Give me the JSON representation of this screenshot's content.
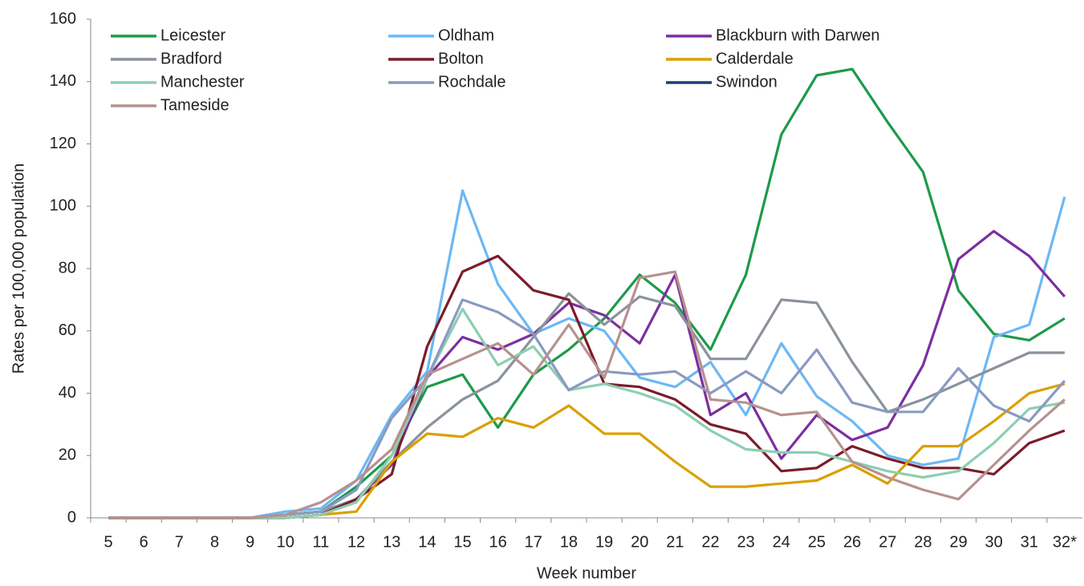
{
  "chart_data": {
    "type": "line",
    "y_label": "Rates per 100,000 population",
    "x_label": "Week number",
    "categories": [
      "5",
      "6",
      "7",
      "8",
      "9",
      "10",
      "11",
      "12",
      "13",
      "14",
      "15",
      "16",
      "17",
      "18",
      "19",
      "20",
      "21",
      "22",
      "23",
      "24",
      "25",
      "26",
      "27",
      "28",
      "29",
      "30",
      "31",
      "32*"
    ],
    "ylim": [
      0,
      160
    ],
    "yticks": [
      0,
      20,
      40,
      60,
      80,
      100,
      120,
      140,
      160
    ],
    "grid": false,
    "legend": "top",
    "series": [
      {
        "name": "Leicester",
        "color": "#1e9a4a",
        "values": [
          0,
          0,
          0,
          0,
          0,
          1,
          2,
          10,
          20,
          42,
          46,
          29,
          46,
          54,
          64,
          78,
          69,
          54,
          78,
          123,
          142,
          144,
          127,
          111,
          73,
          59,
          57,
          64
        ]
      },
      {
        "name": "Oldham",
        "color": "#6cb8f5",
        "values": [
          0,
          0,
          0,
          0,
          0,
          2,
          3,
          12,
          33,
          47,
          105,
          75,
          59,
          64,
          60,
          45,
          42,
          50,
          33,
          56,
          39,
          31,
          20,
          17,
          19,
          58,
          62,
          103
        ]
      },
      {
        "name": "Blackburn with Darwen",
        "color": "#7b2fa0",
        "values": [
          0,
          0,
          0,
          0,
          0,
          0,
          1,
          6,
          17,
          45,
          58,
          54,
          59,
          69,
          65,
          56,
          78,
          33,
          40,
          19,
          33,
          25,
          29,
          49,
          83,
          92,
          84,
          71
        ]
      },
      {
        "name": "Bradford",
        "color": "#8b929c",
        "values": [
          0,
          0,
          0,
          0,
          0,
          1,
          2,
          6,
          18,
          29,
          38,
          44,
          58,
          72,
          62,
          71,
          68,
          51,
          51,
          70,
          69,
          50,
          34,
          38,
          43,
          48,
          53,
          53
        ]
      },
      {
        "name": "Bolton",
        "color": "#7b1c2a",
        "values": [
          0,
          0,
          0,
          0,
          0,
          0,
          1,
          6,
          14,
          55,
          79,
          84,
          73,
          70,
          43,
          42,
          38,
          30,
          27,
          15,
          16,
          23,
          19,
          16,
          16,
          14,
          24,
          28
        ]
      },
      {
        "name": "Calderdale",
        "color": "#d9a000",
        "values": [
          0,
          0,
          0,
          0,
          0,
          0,
          1,
          2,
          18,
          27,
          26,
          32,
          29,
          36,
          27,
          27,
          18,
          10,
          10,
          11,
          12,
          17,
          11,
          23,
          23,
          31,
          40,
          43
        ]
      },
      {
        "name": "Manchester",
        "color": "#8ccfb0",
        "values": [
          0,
          0,
          0,
          0,
          0,
          0,
          1,
          5,
          20,
          45,
          67,
          49,
          55,
          41,
          43,
          40,
          36,
          28,
          22,
          21,
          21,
          18,
          15,
          13,
          15,
          24,
          35,
          37
        ]
      },
      {
        "name": "Rochdale",
        "color": "#8a9ac0",
        "values": [
          0,
          0,
          0,
          0,
          0,
          1,
          2,
          9,
          32,
          45,
          70,
          66,
          59,
          41,
          47,
          46,
          47,
          40,
          47,
          40,
          54,
          37,
          34,
          34,
          48,
          36,
          31,
          44
        ]
      },
      {
        "name": "Swindon",
        "color": "#1f3d7a",
        "values": [
          null,
          null,
          null,
          null,
          null,
          null,
          null,
          null,
          null,
          null,
          null,
          null,
          null,
          null,
          null,
          null,
          null,
          null,
          null,
          null,
          null,
          null,
          null,
          null,
          null,
          null,
          null,
          null
        ]
      },
      {
        "name": "Tameside",
        "color": "#b89090",
        "values": [
          0,
          0,
          0,
          0,
          0,
          1,
          5,
          12,
          22,
          46,
          51,
          56,
          46,
          62,
          45,
          77,
          79,
          38,
          37,
          33,
          34,
          18,
          13,
          9,
          6,
          17,
          28,
          38
        ]
      }
    ]
  }
}
